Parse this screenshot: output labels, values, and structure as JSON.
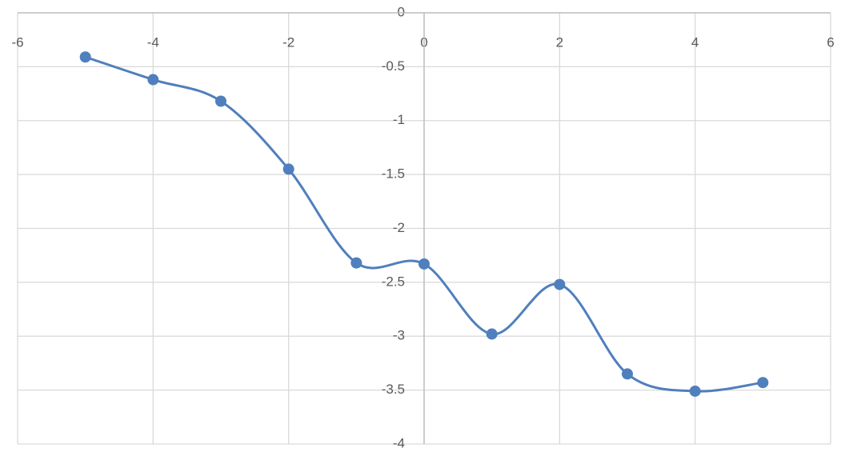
{
  "chart_data": {
    "type": "scatter",
    "smooth": true,
    "markers": true,
    "color": "#4f7fbd",
    "x": [
      -5,
      -4,
      -3,
      -2,
      -1,
      0,
      1,
      2,
      3,
      4,
      5
    ],
    "values": [
      -0.41,
      -0.62,
      -0.82,
      -1.45,
      -2.32,
      -2.33,
      -2.98,
      -2.52,
      -3.35,
      -3.51,
      -3.43
    ],
    "xlim": [
      -6,
      6
    ],
    "ylim": [
      -4,
      0
    ],
    "xticks": [
      -6,
      -4,
      -2,
      0,
      2,
      4,
      6
    ],
    "yticks": [
      0,
      -0.5,
      -1,
      -1.5,
      -2,
      -2.5,
      -3,
      -3.5,
      -4
    ],
    "grid": true
  }
}
